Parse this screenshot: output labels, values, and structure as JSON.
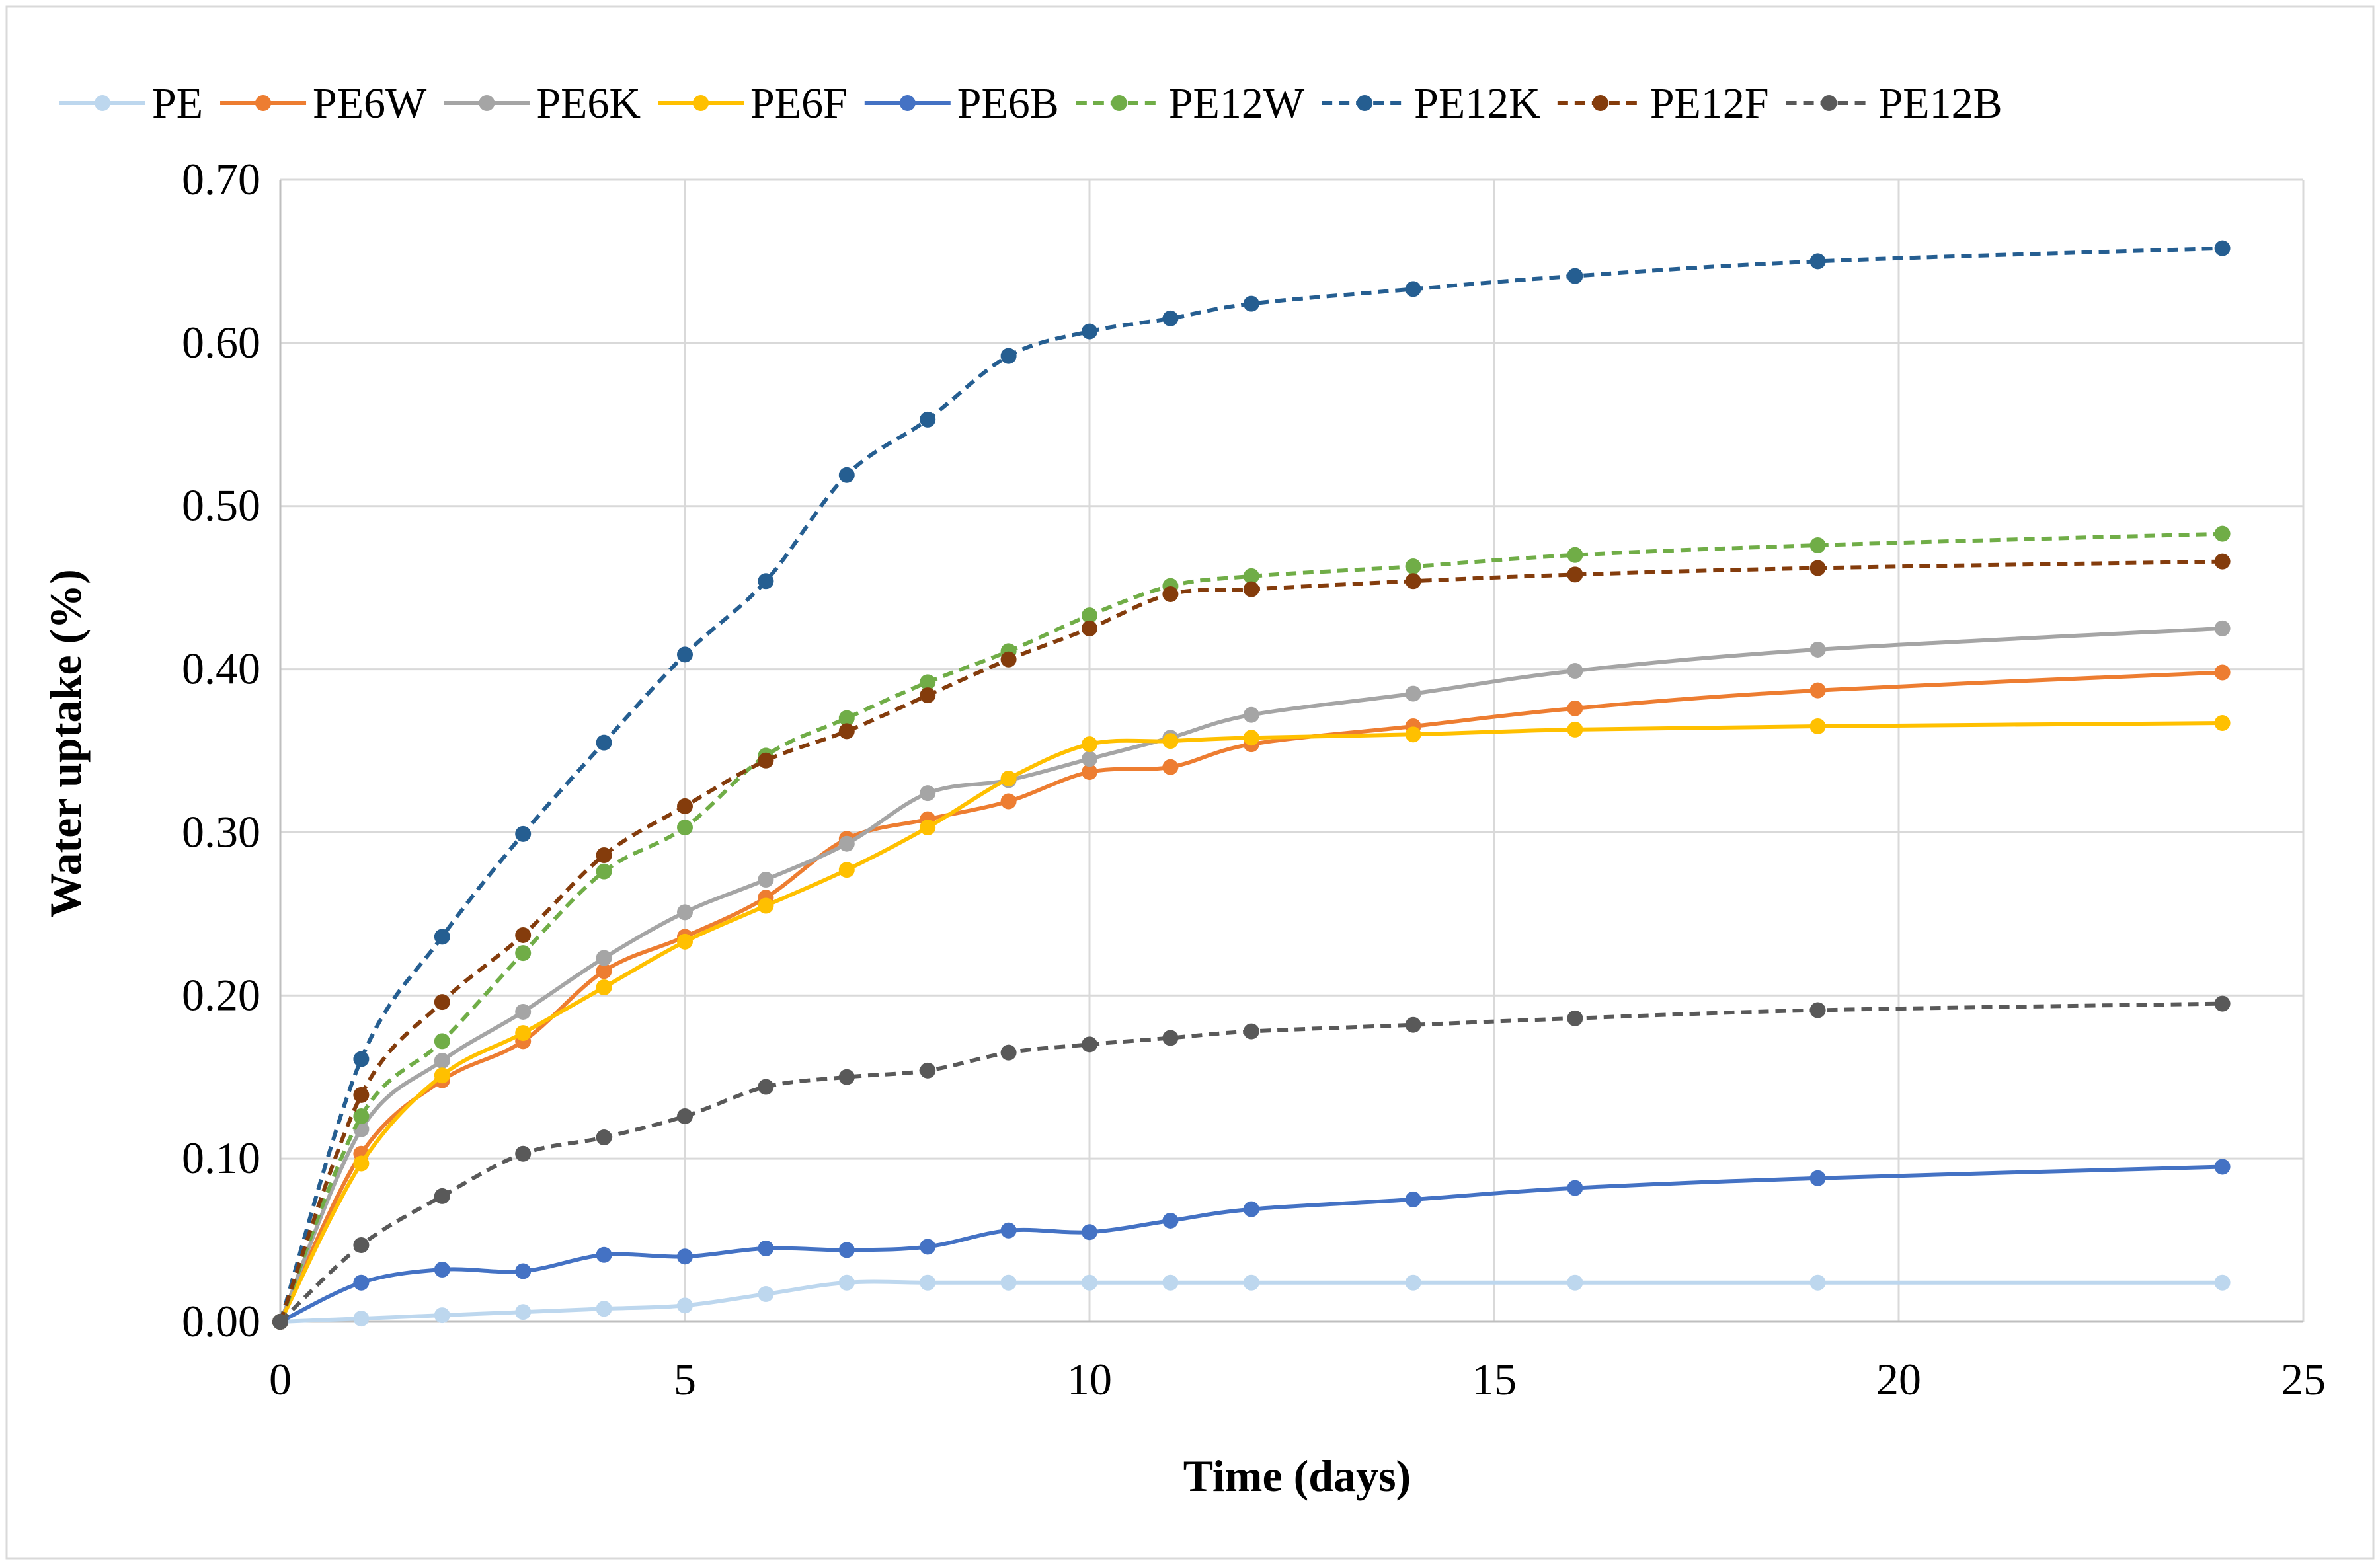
{
  "chart_data": {
    "type": "line",
    "title": "",
    "xlabel": "Time (days)",
    "ylabel": "Water  uptake (%)",
    "xlim": [
      0,
      25
    ],
    "ylim": [
      0,
      0.7
    ],
    "xticks": [
      0,
      5,
      10,
      15,
      20,
      25
    ],
    "xtick_labels": [
      "0",
      "5",
      "10",
      "15",
      "20",
      "25"
    ],
    "yticks": [
      0,
      0.1,
      0.2,
      0.3,
      0.4,
      0.5,
      0.6,
      0.7
    ],
    "ytick_labels": [
      "0.00",
      "0.10",
      "0.20",
      "0.30",
      "0.40",
      "0.50",
      "0.60",
      "0.70"
    ],
    "grid": true,
    "legend_position": "top",
    "series": [
      {
        "name": "PE",
        "color": "#bdd7ee",
        "dashed": false,
        "x": [
          0,
          1,
          2,
          3,
          4,
          5,
          6,
          7,
          8,
          9,
          10,
          11,
          12,
          14,
          16,
          19,
          24
        ],
        "y": [
          0.0,
          0.002,
          0.004,
          0.006,
          0.008,
          0.01,
          0.017,
          0.024,
          0.024,
          0.024,
          0.024,
          0.024,
          0.024,
          0.024,
          0.024,
          0.024,
          0.024
        ]
      },
      {
        "name": "PE6W",
        "color": "#ed7d31",
        "dashed": false,
        "x": [
          0,
          1,
          2,
          3,
          4,
          5,
          6,
          7,
          8,
          9,
          10,
          11,
          12,
          14,
          16,
          19,
          24
        ],
        "y": [
          0.0,
          0.103,
          0.148,
          0.172,
          0.215,
          0.236,
          0.26,
          0.296,
          0.308,
          0.319,
          0.337,
          0.34,
          0.354,
          0.365,
          0.376,
          0.387,
          0.398
        ]
      },
      {
        "name": "PE6K",
        "color": "#a5a5a5",
        "dashed": false,
        "x": [
          0,
          1,
          2,
          3,
          4,
          5,
          6,
          7,
          8,
          9,
          10,
          11,
          12,
          14,
          16,
          19,
          24
        ],
        "y": [
          0.0,
          0.118,
          0.16,
          0.19,
          0.223,
          0.251,
          0.271,
          0.293,
          0.324,
          0.332,
          0.345,
          0.358,
          0.372,
          0.385,
          0.399,
          0.412,
          0.425
        ]
      },
      {
        "name": "PE6F",
        "color": "#ffc000",
        "dashed": false,
        "x": [
          0,
          1,
          2,
          3,
          4,
          5,
          6,
          7,
          8,
          9,
          10,
          11,
          12,
          14,
          16,
          19,
          24
        ],
        "y": [
          0.0,
          0.097,
          0.151,
          0.177,
          0.205,
          0.233,
          0.255,
          0.277,
          0.303,
          0.333,
          0.354,
          0.356,
          0.358,
          0.36,
          0.363,
          0.365,
          0.367
        ]
      },
      {
        "name": "PE6B",
        "color": "#4472c4",
        "dashed": false,
        "x": [
          0,
          1,
          2,
          3,
          4,
          5,
          6,
          7,
          8,
          9,
          10,
          11,
          12,
          14,
          16,
          19,
          24
        ],
        "y": [
          0.0,
          0.024,
          0.032,
          0.031,
          0.041,
          0.04,
          0.045,
          0.044,
          0.046,
          0.056,
          0.055,
          0.062,
          0.069,
          0.075,
          0.082,
          0.088,
          0.095
        ]
      },
      {
        "name": "PE12W",
        "color": "#70ad47",
        "dashed": true,
        "x": [
          0,
          1,
          2,
          3,
          4,
          5,
          6,
          7,
          8,
          9,
          10,
          11,
          12,
          14,
          16,
          19,
          24
        ],
        "y": [
          0.0,
          0.126,
          0.172,
          0.226,
          0.276,
          0.303,
          0.347,
          0.37,
          0.392,
          0.411,
          0.433,
          0.451,
          0.457,
          0.463,
          0.47,
          0.476,
          0.483
        ]
      },
      {
        "name": "PE12K",
        "color": "#255e91",
        "dashed": true,
        "x": [
          0,
          1,
          2,
          3,
          4,
          5,
          6,
          7,
          8,
          9,
          10,
          11,
          12,
          14,
          16,
          19,
          24
        ],
        "y": [
          0.0,
          0.161,
          0.236,
          0.299,
          0.355,
          0.409,
          0.454,
          0.519,
          0.553,
          0.592,
          0.607,
          0.615,
          0.624,
          0.633,
          0.641,
          0.65,
          0.658
        ]
      },
      {
        "name": "PE12F",
        "color": "#843c0c",
        "dashed": true,
        "x": [
          0,
          1,
          2,
          3,
          4,
          5,
          6,
          7,
          8,
          9,
          10,
          11,
          12,
          14,
          16,
          19,
          24
        ],
        "y": [
          0.0,
          0.139,
          0.196,
          0.237,
          0.286,
          0.316,
          0.344,
          0.362,
          0.384,
          0.406,
          0.425,
          0.446,
          0.449,
          0.454,
          0.458,
          0.462,
          0.466
        ]
      },
      {
        "name": "PE12B",
        "color": "#595959",
        "dashed": true,
        "x": [
          0,
          1,
          2,
          3,
          4,
          5,
          6,
          7,
          8,
          9,
          10,
          11,
          12,
          14,
          16,
          19,
          24
        ],
        "y": [
          0.0,
          0.047,
          0.077,
          0.103,
          0.113,
          0.126,
          0.144,
          0.15,
          0.154,
          0.165,
          0.17,
          0.174,
          0.178,
          0.182,
          0.186,
          0.191,
          0.195
        ]
      }
    ]
  }
}
